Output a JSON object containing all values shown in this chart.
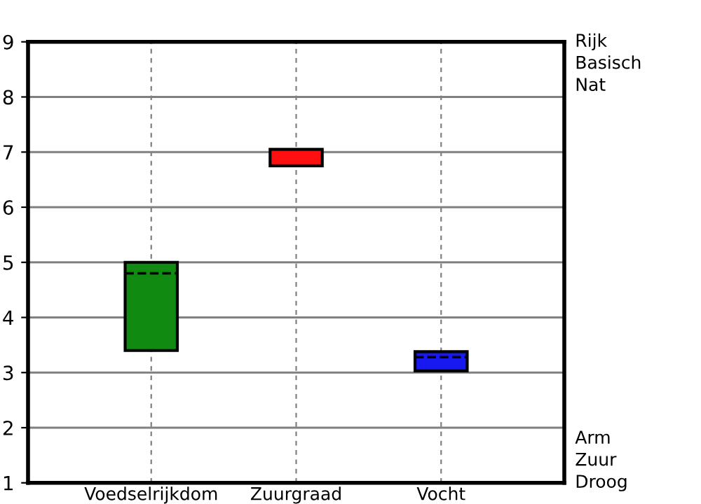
{
  "chart_data": {
    "type": "box",
    "categories": [
      "Voedselrijkdom",
      "Zuurgraad",
      "Vocht"
    ],
    "boxes": [
      {
        "low": 3.4,
        "q1": 3.4,
        "median": 4.8,
        "q3": 5.0,
        "high": 5.0
      },
      {
        "low": 6.75,
        "q1": 6.75,
        "median": 6.75,
        "q3": 7.05,
        "high": 7.05
      },
      {
        "low": 3.03,
        "q1": 3.03,
        "median": 3.28,
        "q3": 3.38,
        "high": 3.38
      }
    ],
    "colors": [
      "#108a10",
      "#ff1010",
      "#1818f0"
    ],
    "ylim": [
      1,
      9
    ],
    "yticks": [
      1,
      2,
      3,
      4,
      5,
      6,
      7,
      8,
      9
    ],
    "annotations": [
      "Rijk",
      "Basisch",
      "Nat",
      "Arm",
      "Zuur",
      "Droog"
    ],
    "grid": true
  }
}
